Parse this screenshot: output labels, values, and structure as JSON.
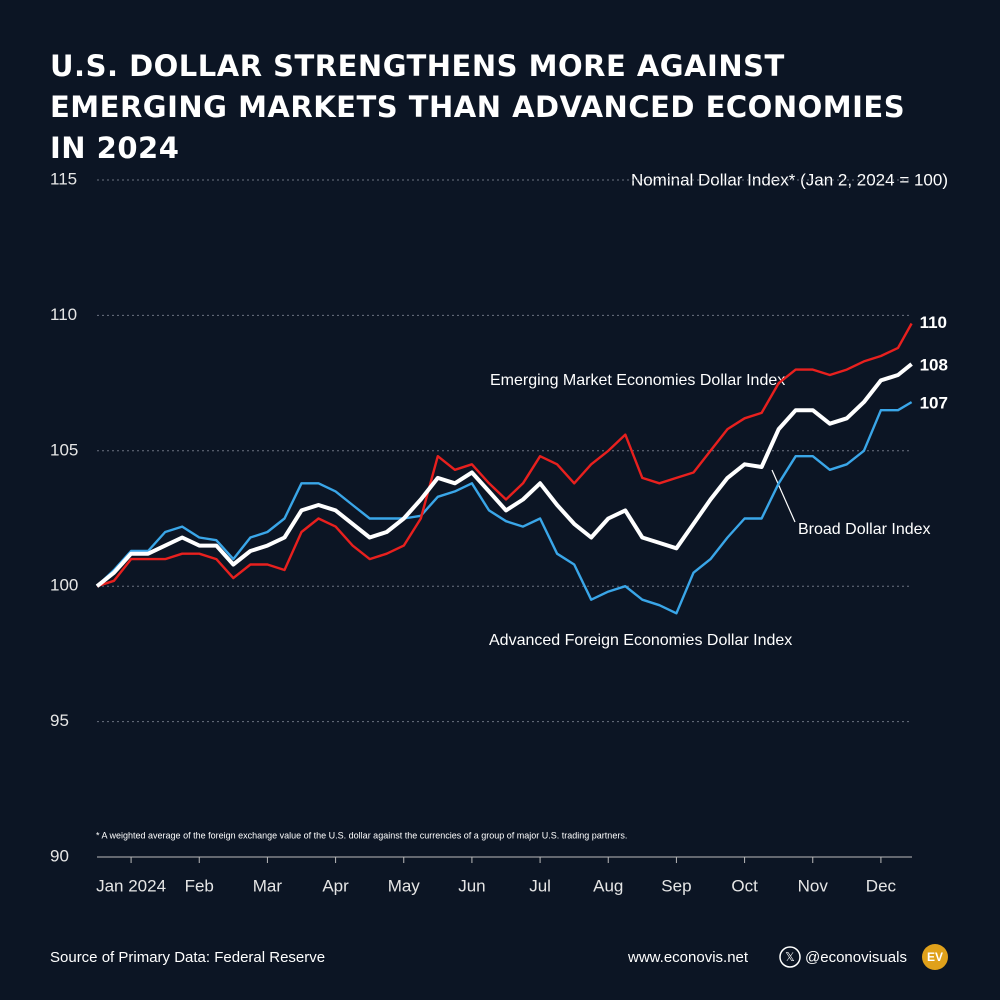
{
  "chart_data": {
    "type": "line",
    "title": "U.S. DOLLAR STRENGTHENS MORE AGAINST EMERGING MARKETS THAN ADVANCED ECONOMIES IN 2024",
    "subtitle": "Nominal Dollar Index* (Jan 2, 2024 = 100)",
    "footnote": "* A weighted average of the foreign exchange value of the U.S. dollar against the currencies of a group of major U.S. trading partners.",
    "source": "Source of Primary Data: Federal Reserve",
    "website": "www.econovis.net",
    "handle": "@econovisuals",
    "logo": "EV",
    "x": [
      0,
      0.25,
      0.5,
      0.75,
      1,
      1.25,
      1.5,
      1.75,
      2,
      2.25,
      2.5,
      2.75,
      3,
      3.25,
      3.5,
      3.75,
      4,
      4.25,
      4.5,
      4.75,
      5,
      5.25,
      5.5,
      5.75,
      6,
      6.25,
      6.5,
      6.75,
      7,
      7.25,
      7.5,
      7.75,
      8,
      8.25,
      8.5,
      8.75,
      9,
      9.25,
      9.5,
      9.75,
      10,
      10.25,
      10.5,
      10.75,
      11,
      11.25,
      11.5,
      11.75,
      11.95
    ],
    "xlim": [
      0,
      12
    ],
    "xticks": [
      {
        "value": 0.5,
        "label": "Jan 2024"
      },
      {
        "value": 1.5,
        "label": "Feb"
      },
      {
        "value": 2.5,
        "label": "Mar"
      },
      {
        "value": 3.5,
        "label": "Apr"
      },
      {
        "value": 4.5,
        "label": "May"
      },
      {
        "value": 5.5,
        "label": "Jun"
      },
      {
        "value": 6.5,
        "label": "Jul"
      },
      {
        "value": 7.5,
        "label": "Aug"
      },
      {
        "value": 8.5,
        "label": "Sep"
      },
      {
        "value": 9.5,
        "label": "Oct"
      },
      {
        "value": 10.5,
        "label": "Nov"
      },
      {
        "value": 11.5,
        "label": "Dec"
      }
    ],
    "ylim": [
      90,
      115
    ],
    "yticks": [
      90,
      95,
      100,
      105,
      110,
      115
    ],
    "grid": true,
    "series": [
      {
        "name": "Emerging Market Economies Dollar Index",
        "color": "#e8201e",
        "end_label": "110",
        "values": [
          100,
          100.2,
          101.0,
          101.0,
          101.0,
          101.2,
          101.2,
          101.0,
          100.3,
          100.8,
          100.8,
          100.6,
          102.0,
          102.5,
          102.2,
          101.5,
          101.0,
          101.2,
          101.5,
          102.5,
          104.8,
          104.3,
          104.5,
          103.8,
          103.2,
          103.8,
          104.8,
          104.5,
          103.8,
          104.5,
          105.0,
          105.6,
          104.0,
          103.8,
          104.0,
          104.2,
          105.0,
          105.8,
          106.2,
          106.4,
          107.5,
          108.0,
          108.0,
          107.8,
          108.0,
          108.3,
          108.5,
          108.8,
          109.7
        ]
      },
      {
        "name": "Broad Dollar Index",
        "color": "#ffffff",
        "end_label": "108",
        "values": [
          100,
          100.5,
          101.2,
          101.2,
          101.5,
          101.8,
          101.5,
          101.5,
          100.8,
          101.3,
          101.5,
          101.8,
          102.8,
          103.0,
          102.8,
          102.3,
          101.8,
          102.0,
          102.5,
          103.2,
          104.0,
          103.8,
          104.2,
          103.5,
          102.8,
          103.2,
          103.8,
          103.0,
          102.3,
          101.8,
          102.5,
          102.8,
          101.8,
          101.6,
          101.4,
          102.3,
          103.2,
          104.0,
          104.5,
          104.4,
          105.8,
          106.5,
          106.5,
          106.0,
          106.2,
          106.8,
          107.6,
          107.8,
          108.2
        ]
      },
      {
        "name": "Advanced Foreign Economies Dollar Index",
        "color": "#3aa6e8",
        "end_label": "107",
        "values": [
          100,
          100.6,
          101.3,
          101.3,
          102.0,
          102.2,
          101.8,
          101.7,
          101.0,
          101.8,
          102.0,
          102.5,
          103.8,
          103.8,
          103.5,
          103.0,
          102.5,
          102.5,
          102.5,
          102.6,
          103.3,
          103.5,
          103.8,
          102.8,
          102.4,
          102.2,
          102.5,
          101.2,
          100.8,
          99.5,
          99.8,
          100.0,
          99.5,
          99.3,
          99.0,
          100.5,
          101.0,
          101.8,
          102.5,
          102.5,
          103.8,
          104.8,
          104.8,
          104.3,
          104.5,
          105.0,
          106.5,
          106.5,
          106.8
        ]
      }
    ]
  }
}
